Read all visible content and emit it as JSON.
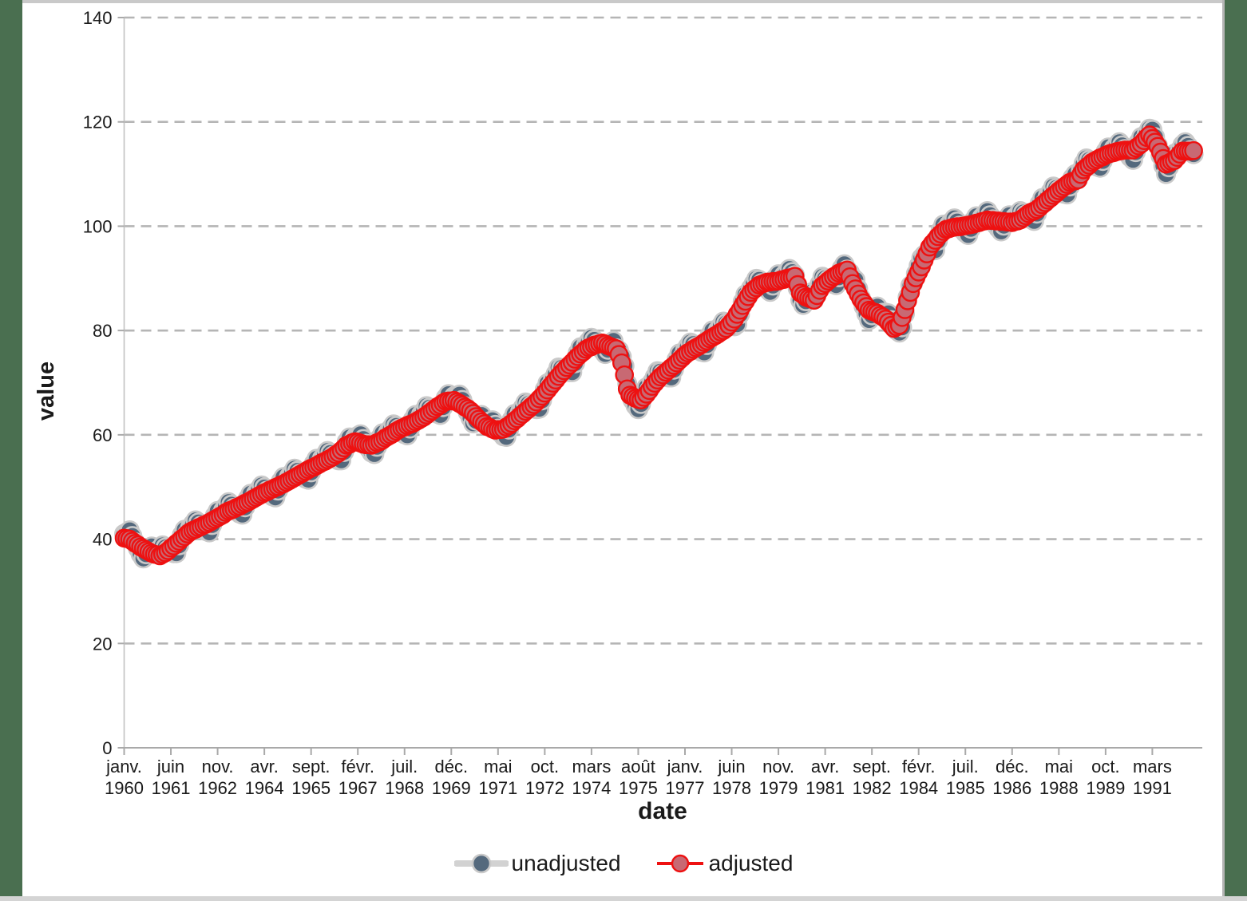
{
  "palette": {
    "frame_green": "#4a6f50",
    "top_strip": "#c9c9c9",
    "bottom_strip": "#d4d4d4",
    "gridline": "#b5b5b5",
    "axis_line": "#a9a9a9",
    "text": "#1a1a1a"
  },
  "chart_data": {
    "type": "line",
    "title": "",
    "xlabel": "date",
    "ylabel": "value",
    "ylim": [
      0,
      140
    ],
    "grid": "dashed horizontal",
    "legend_position": "bottom-center",
    "y_ticks": [
      0,
      20,
      40,
      60,
      80,
      100,
      120,
      140
    ],
    "x_start": "janv. 1960",
    "x_end": "juin 1992",
    "months_total": 390,
    "x_ticks": [
      {
        "m": 0,
        "month": "janv.",
        "year": "1960"
      },
      {
        "m": 17,
        "month": "juin",
        "year": "1961"
      },
      {
        "m": 34,
        "month": "nov.",
        "year": "1962"
      },
      {
        "m": 51,
        "month": "avr.",
        "year": "1964"
      },
      {
        "m": 68,
        "month": "sept.",
        "year": "1965"
      },
      {
        "m": 85,
        "month": "févr.",
        "year": "1967"
      },
      {
        "m": 102,
        "month": "juil.",
        "year": "1968"
      },
      {
        "m": 119,
        "month": "déc.",
        "year": "1969"
      },
      {
        "m": 136,
        "month": "mai",
        "year": "1971"
      },
      {
        "m": 153,
        "month": "oct.",
        "year": "1972"
      },
      {
        "m": 170,
        "month": "mars",
        "year": "1974"
      },
      {
        "m": 187,
        "month": "août",
        "year": "1975"
      },
      {
        "m": 204,
        "month": "janv.",
        "year": "1977"
      },
      {
        "m": 221,
        "month": "juin",
        "year": "1978"
      },
      {
        "m": 238,
        "month": "nov.",
        "year": "1979"
      },
      {
        "m": 255,
        "month": "avr.",
        "year": "1981"
      },
      {
        "m": 272,
        "month": "sept.",
        "year": "1982"
      },
      {
        "m": 289,
        "month": "févr.",
        "year": "1984"
      },
      {
        "m": 306,
        "month": "juil.",
        "year": "1985"
      },
      {
        "m": 323,
        "month": "déc.",
        "year": "1986"
      },
      {
        "m": 340,
        "month": "mai",
        "year": "1988"
      },
      {
        "m": 357,
        "month": "oct.",
        "year": "1989"
      },
      {
        "m": 374,
        "month": "mars",
        "year": "1991"
      }
    ],
    "series": [
      {
        "name": "unadjusted",
        "line_color": "#d2d2d2",
        "line_width": 4.5,
        "marker_fill": "#54697d",
        "marker_stroke": "#c9c9c9",
        "marker_stroke_width": 2.6,
        "marker_radius": 11.2,
        "values": [
          41.0,
          41.3,
          41.7,
          40.6,
          39.4,
          38.2,
          37.1,
          36.3,
          37.1,
          38.3,
          38.6,
          37.2,
          37.8,
          38.0,
          38.8,
          38.4,
          38.0,
          37.6,
          37.3,
          37.3,
          38.8,
          40.8,
          41.8,
          41.1,
          42.2,
          42.9,
          43.6,
          43.2,
          42.6,
          42.0,
          41.5,
          41.3,
          42.7,
          44.5,
          45.4,
          44.5,
          45.5,
          46.3,
          47.1,
          46.6,
          46.0,
          45.4,
          44.9,
          44.7,
          46.1,
          47.8,
          48.7,
          47.8,
          48.8,
          49.5,
          50.3,
          49.9,
          49.3,
          48.7,
          48.2,
          48.0,
          49.3,
          51.1,
          51.9,
          51.0,
          52.0,
          52.7,
          53.5,
          53.1,
          52.6,
          52.0,
          51.6,
          51.4,
          52.8,
          54.5,
          55.4,
          54.5,
          55.5,
          56.1,
          56.9,
          56.5,
          56.0,
          55.5,
          55.1,
          55.1,
          56.7,
          58.7,
          59.5,
          58.6,
          59.5,
          59.8,
          60.1,
          59.2,
          58.3,
          57.4,
          56.6,
          56.3,
          57.7,
          59.4,
          60.3,
          59.5,
          60.5,
          61.2,
          62.0,
          61.7,
          61.2,
          60.6,
          60.1,
          59.9,
          61.2,
          62.9,
          63.8,
          62.9,
          63.9,
          64.6,
          65.5,
          65.2,
          64.8,
          64.3,
          64.0,
          63.8,
          65.3,
          67.1,
          67.8,
          66.6,
          67.4,
          67.5,
          67.7,
          66.7,
          65.5,
          64.3,
          63.2,
          62.2,
          62.7,
          63.7,
          63.8,
          62.2,
          62.4,
          62.6,
          62.8,
          61.9,
          61.2,
          60.3,
          59.7,
          59.6,
          61.0,
          62.9,
          64.0,
          63.2,
          64.4,
          65.2,
          66.2,
          65.9,
          65.6,
          65.1,
          64.9,
          65.0,
          66.6,
          68.7,
          69.9,
          69.4,
          70.7,
          71.7,
          72.9,
          72.8,
          72.5,
          72.2,
          72.0,
          72.0,
          73.7,
          75.7,
          76.8,
          76.0,
          77.2,
          77.9,
          78.6,
          78.2,
          77.5,
          76.8,
          76.2,
          75.5,
          76.3,
          77.6,
          78.0,
          76.6,
          76.2,
          75.0,
          73.2,
          69.8,
          67.8,
          66.6,
          65.6,
          64.9,
          65.9,
          67.9,
          69.1,
          68.6,
          70.1,
          71.1,
          72.2,
          72.1,
          71.7,
          71.3,
          71.0,
          71.0,
          72.5,
          74.5,
          75.6,
          74.9,
          76.1,
          76.9,
          77.7,
          77.4,
          76.9,
          76.3,
          75.9,
          75.8,
          77.2,
          79.1,
          80.0,
          79.1,
          80.1,
          80.9,
          81.7,
          81.4,
          81.2,
          80.9,
          80.8,
          81.2,
          83.1,
          85.5,
          86.9,
          86.6,
          88.1,
          89.0,
          89.9,
          89.7,
          89.1,
          88.4,
          87.9,
          87.4,
          88.6,
          90.1,
          90.8,
          89.8,
          90.6,
          91.2,
          91.8,
          91.2,
          90.6,
          88.1,
          85.8,
          84.9,
          85.6,
          86.9,
          87.3,
          85.9,
          87.5,
          88.9,
          90.3,
          90.0,
          89.7,
          89.2,
          88.9,
          88.7,
          90.2,
          91.9,
          92.7,
          91.7,
          91.1,
          90.2,
          89.7,
          88.0,
          86.2,
          84.6,
          83.2,
          82.0,
          82.9,
          84.2,
          84.6,
          83.0,
          83.4,
          83.4,
          83.3,
          82.0,
          80.6,
          80.0,
          79.6,
          80.6,
          83.2,
          86.4,
          88.6,
          89.1,
          90.9,
          92.4,
          93.9,
          94.5,
          94.9,
          95.3,
          95.3,
          95.4,
          97.2,
          99.2,
          100.3,
          99.5,
          100.3,
          100.9,
          101.5,
          100.9,
          100.1,
          99.3,
          98.7,
          98.3,
          99.5,
          101.1,
          101.9,
          100.8,
          101.7,
          102.2,
          102.9,
          102.1,
          101.3,
          100.3,
          99.6,
          99.0,
          100.1,
          101.5,
          102.1,
          100.8,
          101.7,
          102.2,
          102.9,
          102.6,
          102.2,
          101.7,
          101.3,
          101.0,
          102.4,
          104.3,
          105.4,
          104.6,
          105.8,
          106.6,
          107.6,
          107.3,
          107.0,
          106.5,
          106.2,
          106.1,
          107.6,
          109.3,
          110.0,
          109.0,
          110.7,
          112.0,
          113.0,
          112.7,
          112.4,
          111.8,
          111.4,
          111.2,
          112.5,
          114.3,
          115.1,
          114.1,
          114.9,
          115.5,
          116.1,
          115.5,
          114.8,
          113.9,
          113.2,
          112.7,
          114.2,
          116.1,
          117.1,
          116.5,
          117.8,
          118.7,
          118.5,
          117.1,
          115.5,
          113.5,
          111.6,
          110.0,
          111.3,
          113.1,
          113.9,
          113.3,
          114.6,
          115.6,
          116.1,
          115.4,
          114.6,
          113.8
        ]
      },
      {
        "name": "adjusted",
        "line_color": "#ee1111",
        "line_width": 3.4,
        "marker_fill": "#c86973",
        "marker_stroke": "#ee1111",
        "marker_stroke_width": 2.4,
        "marker_radius": 10.6,
        "values": [
          40.2,
          40.1,
          40.0,
          39.6,
          39.2,
          38.9,
          38.5,
          38.2,
          37.9,
          37.6,
          37.3,
          37.1,
          37.0,
          36.8,
          37.1,
          37.4,
          37.8,
          38.3,
          38.7,
          39.2,
          39.6,
          40.1,
          40.5,
          41.0,
          41.4,
          41.7,
          41.9,
          42.2,
          42.4,
          42.7,
          42.9,
          43.2,
          43.5,
          43.8,
          44.1,
          44.4,
          44.7,
          45.1,
          45.4,
          45.6,
          45.8,
          46.1,
          46.3,
          46.6,
          46.9,
          47.1,
          47.4,
          47.7,
          48.0,
          48.3,
          48.6,
          48.9,
          49.1,
          49.4,
          49.6,
          49.9,
          50.1,
          50.4,
          50.6,
          50.9,
          51.2,
          51.5,
          51.8,
          52.1,
          52.4,
          52.7,
          53.0,
          53.3,
          53.6,
          53.8,
          54.1,
          54.4,
          54.7,
          54.9,
          55.2,
          55.5,
          55.8,
          56.2,
          56.5,
          57.0,
          57.5,
          58.0,
          58.2,
          58.5,
          58.7,
          58.6,
          58.4,
          58.2,
          58.1,
          58.1,
          58.0,
          58.2,
          58.5,
          58.7,
          59.0,
          59.4,
          59.7,
          60.0,
          60.3,
          60.7,
          61.0,
          61.3,
          61.5,
          61.8,
          62.0,
          62.2,
          62.5,
          62.8,
          63.1,
          63.4,
          63.8,
          64.2,
          64.6,
          65.0,
          65.4,
          65.7,
          66.1,
          66.4,
          66.5,
          66.5,
          66.6,
          66.3,
          66.0,
          65.7,
          65.3,
          65.0,
          64.6,
          64.1,
          63.5,
          63.0,
          62.5,
          62.1,
          61.6,
          61.4,
          61.1,
          60.9,
          61.0,
          61.0,
          61.1,
          61.5,
          61.8,
          62.2,
          62.7,
          63.1,
          63.6,
          64.0,
          64.5,
          64.9,
          65.4,
          65.8,
          66.3,
          66.9,
          67.4,
          68.0,
          68.6,
          69.3,
          69.9,
          70.5,
          71.2,
          71.8,
          72.3,
          72.9,
          73.4,
          73.9,
          74.5,
          75.0,
          75.5,
          75.9,
          76.4,
          76.7,
          76.9,
          77.2,
          77.3,
          77.5,
          77.6,
          77.4,
          77.1,
          76.9,
          76.7,
          76.5,
          75.4,
          73.8,
          71.5,
          68.8,
          67.6,
          67.3,
          67.0,
          66.8,
          66.7,
          67.2,
          67.8,
          68.5,
          69.3,
          69.9,
          70.5,
          71.1,
          71.5,
          72.0,
          72.4,
          72.9,
          73.3,
          73.8,
          74.3,
          74.8,
          75.3,
          75.7,
          76.0,
          76.4,
          76.7,
          77.0,
          77.3,
          77.7,
          78.0,
          78.4,
          78.7,
          79.0,
          79.3,
          79.7,
          80.0,
          80.4,
          81.0,
          81.6,
          82.2,
          83.1,
          83.9,
          84.8,
          85.6,
          86.5,
          87.3,
          87.8,
          88.2,
          88.7,
          88.9,
          89.1,
          89.3,
          89.3,
          89.4,
          89.4,
          89.5,
          89.7,
          89.8,
          90.0,
          90.1,
          90.2,
          90.4,
          88.8,
          87.2,
          86.8,
          86.4,
          86.2,
          86.0,
          85.8,
          86.7,
          87.7,
          88.6,
          89.0,
          89.5,
          89.9,
          90.3,
          90.6,
          91.0,
          91.2,
          91.4,
          91.6,
          90.3,
          89.0,
          88.0,
          87.0,
          86.0,
          85.3,
          84.6,
          83.9,
          83.7,
          83.5,
          83.3,
          82.9,
          82.6,
          82.2,
          81.6,
          81.0,
          80.4,
          80.7,
          81.0,
          82.5,
          84.0,
          85.7,
          87.3,
          89.0,
          90.1,
          91.2,
          92.2,
          93.5,
          94.7,
          96.0,
          96.7,
          97.3,
          98.0,
          98.5,
          99.0,
          99.4,
          99.5,
          99.7,
          99.8,
          99.9,
          99.9,
          100.0,
          100.1,
          100.2,
          100.3,
          100.4,
          100.6,
          100.7,
          100.9,
          101.0,
          101.2,
          101.1,
          101.1,
          101.0,
          101.0,
          100.9,
          100.9,
          100.8,
          100.8,
          100.7,
          100.9,
          101.0,
          101.2,
          101.6,
          102.0,
          102.4,
          102.7,
          102.9,
          103.2,
          103.6,
          104.1,
          104.5,
          105.0,
          105.4,
          105.9,
          106.3,
          106.8,
          107.2,
          107.6,
          108.0,
          108.4,
          108.6,
          108.7,
          108.9,
          109.9,
          110.8,
          111.3,
          111.7,
          112.2,
          112.5,
          112.8,
          113.1,
          113.3,
          113.6,
          113.8,
          114.0,
          114.1,
          114.3,
          114.4,
          114.5,
          114.6,
          114.6,
          114.6,
          114.6,
          115.0,
          115.4,
          115.8,
          116.4,
          117.0,
          117.5,
          116.8,
          116.1,
          115.3,
          114.2,
          113.0,
          111.9,
          112.1,
          112.4,
          112.6,
          113.2,
          113.8,
          114.4,
          114.4,
          114.4,
          114.4,
          114.5
        ]
      }
    ]
  }
}
